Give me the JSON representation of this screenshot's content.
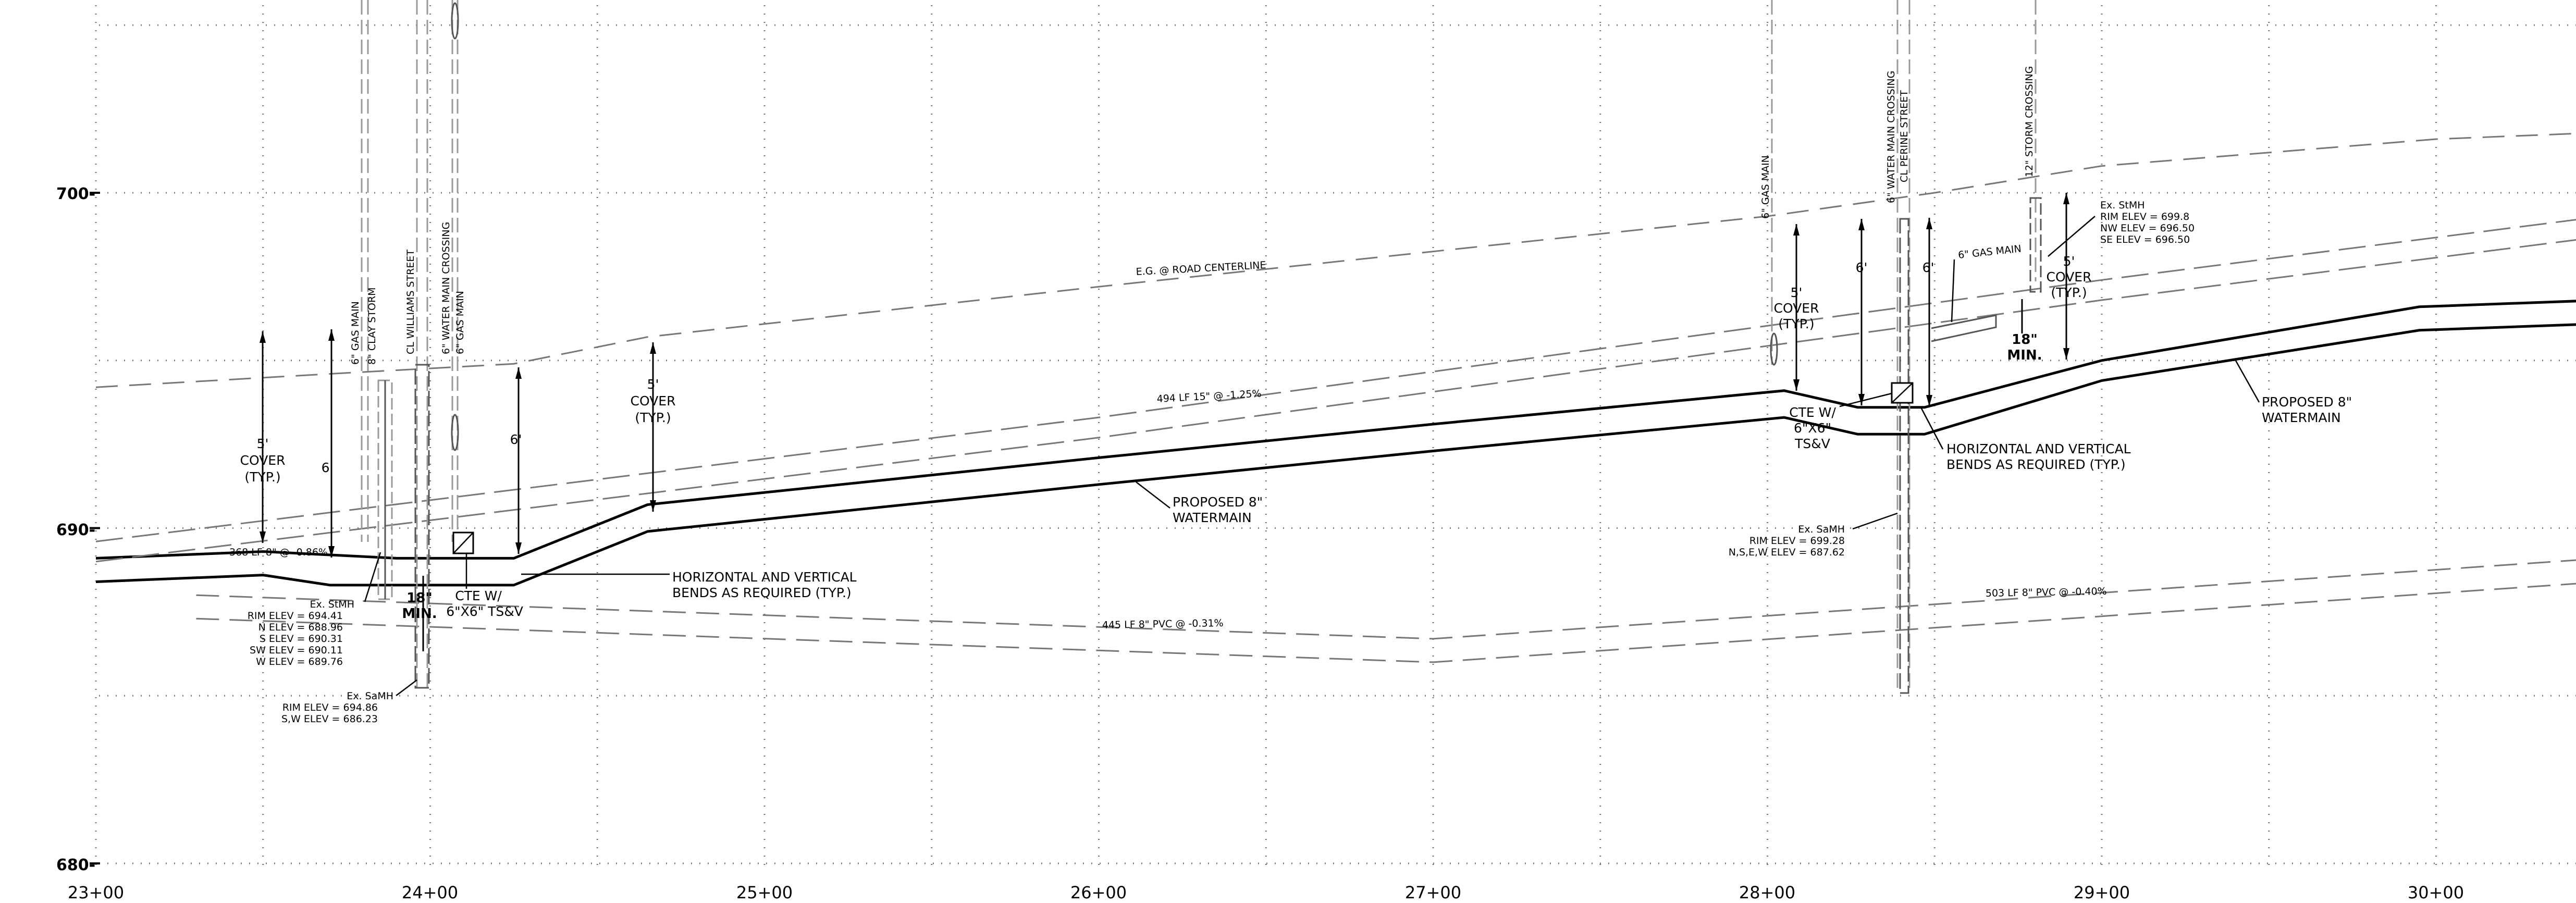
{
  "chart_data": {
    "type": "line",
    "x_axis": {
      "range": [
        2300,
        3050
      ],
      "ticks": [
        2300,
        2400,
        2500,
        2600,
        2700,
        2800,
        2900,
        3000
      ],
      "tick_labels": [
        "23+00",
        "24+00",
        "25+00",
        "26+00",
        "27+00",
        "28+00",
        "29+00",
        "30+00"
      ]
    },
    "y_axis": {
      "range": [
        680,
        705
      ],
      "ticks": [
        680,
        690,
        700
      ],
      "tick_labels": [
        "680-",
        "690-",
        "700-"
      ]
    },
    "grid": true,
    "profiles": [
      {
        "id": "existing-grade",
        "points": [
          [
            2300,
            694.2
          ],
          [
            2370,
            694.6
          ],
          [
            2425,
            694.9
          ],
          [
            2465,
            695.7
          ],
          [
            2600,
            697.2
          ],
          [
            2800,
            699.3
          ],
          [
            2850,
            700.0
          ],
          [
            2900,
            700.8
          ],
          [
            3000,
            701.6
          ],
          [
            3050,
            701.8
          ]
        ]
      },
      {
        "id": "watermain-top",
        "points": [
          [
            2300,
            689.1
          ],
          [
            2350,
            689.3
          ],
          [
            2390,
            689.1
          ],
          [
            2425,
            689.1
          ],
          [
            2465,
            690.7
          ],
          [
            2600,
            692.1
          ],
          [
            2700,
            693.1
          ],
          [
            2805,
            694.1
          ],
          [
            2827,
            693.6
          ],
          [
            2847,
            693.6
          ],
          [
            2900,
            695.0
          ],
          [
            2995,
            696.6
          ],
          [
            3050,
            696.8
          ]
        ]
      },
      {
        "id": "watermain-bottom",
        "points": [
          [
            2300,
            688.4
          ],
          [
            2350,
            688.6
          ],
          [
            2370,
            688.3
          ],
          [
            2425,
            688.3
          ],
          [
            2465,
            689.9
          ],
          [
            2600,
            691.3
          ],
          [
            2700,
            692.3
          ],
          [
            2805,
            693.3
          ],
          [
            2827,
            692.8
          ],
          [
            2847,
            692.8
          ],
          [
            2900,
            694.4
          ],
          [
            2995,
            695.9
          ],
          [
            3050,
            696.1
          ]
        ]
      },
      {
        "id": "sanitary-upper",
        "points": [
          [
            2300,
            689.6
          ],
          [
            2600,
            693.3
          ],
          [
            2900,
            697.4
          ],
          [
            3050,
            699.3
          ]
        ]
      },
      {
        "id": "sanitary-lower",
        "points": [
          [
            2300,
            689.0
          ],
          [
            2600,
            692.7
          ],
          [
            2900,
            696.8
          ],
          [
            3050,
            698.7
          ]
        ]
      },
      {
        "id": "storm-upper",
        "points": [
          [
            2330,
            688.0
          ],
          [
            2700,
            686.7
          ],
          [
            3050,
            689.1
          ]
        ]
      },
      {
        "id": "storm-lower",
        "points": [
          [
            2330,
            687.3
          ],
          [
            2700,
            686.0
          ],
          [
            3050,
            688.4
          ]
        ]
      }
    ],
    "annotations": {
      "cover_typ": "COVER",
      "typ": "(TYP.)",
      "five_ft": "5'",
      "six_ft": "6'",
      "eighteen_in": "18\"",
      "min": "MIN.",
      "cte_a1": "CTE W/",
      "cte_a2": "6\"X6\" TS&V",
      "cte_b1": "CTE W/",
      "cte_b2": "6\"X6\"",
      "cte_b3": "TS&V",
      "bends1": "HORIZONTAL AND VERTICAL",
      "bends2": "BENDS AS REQUIRED (TYP.)",
      "pwm1": "PROPOSED 8\"",
      "pwm2": "WATERMAIN",
      "eg_road": "E.G. @ ROAD CENTERLINE",
      "run_368": "368 LF 8\" @ -0.86%",
      "run_494": "494 LF 15\" @ -1.25%",
      "run_445": "445 LF 8\" PVC @ -0.31%",
      "run_503": "503 LF 8\" PVC @ -0.40%",
      "gas_main_6": "6\" GAS MAIN",
      "clay_storm_8": "8\" CLAY STORM",
      "cl_williams": "CL WILLIAMS STREET",
      "wm_crossing_6": "6\" WATER MAIN CROSSING",
      "gas_main_6b": "6\" GAS MAIN",
      "gas_main_6c": "6\" GAS MAIN",
      "wm_crossing_6b": "6\" WATER MAIN CROSSING",
      "cl_perine": "CL PERINE STREET",
      "storm_crossing_12": "12\" STORM CROSSING",
      "gas_main_label": "6\" GAS MAIN",
      "stmh1": [
        "Ex. StMH",
        "RIM ELEV = 694.41",
        "N ELEV = 688.96",
        "S ELEV = 690.31",
        "SW ELEV = 690.11",
        "W ELEV = 689.76"
      ],
      "samh1": [
        "Ex. SaMH",
        "RIM ELEV = 694.86",
        "S,W ELEV = 686.23"
      ],
      "samh2": [
        "Ex. SaMH",
        "RIM ELEV = 699.28",
        "N,S,E,W ELEV = 687.62"
      ],
      "stmh2": [
        "Ex. StMH",
        "RIM ELEV = 699.8",
        "NW ELEV = 696.50",
        "SE ELEV = 696.50"
      ]
    }
  }
}
